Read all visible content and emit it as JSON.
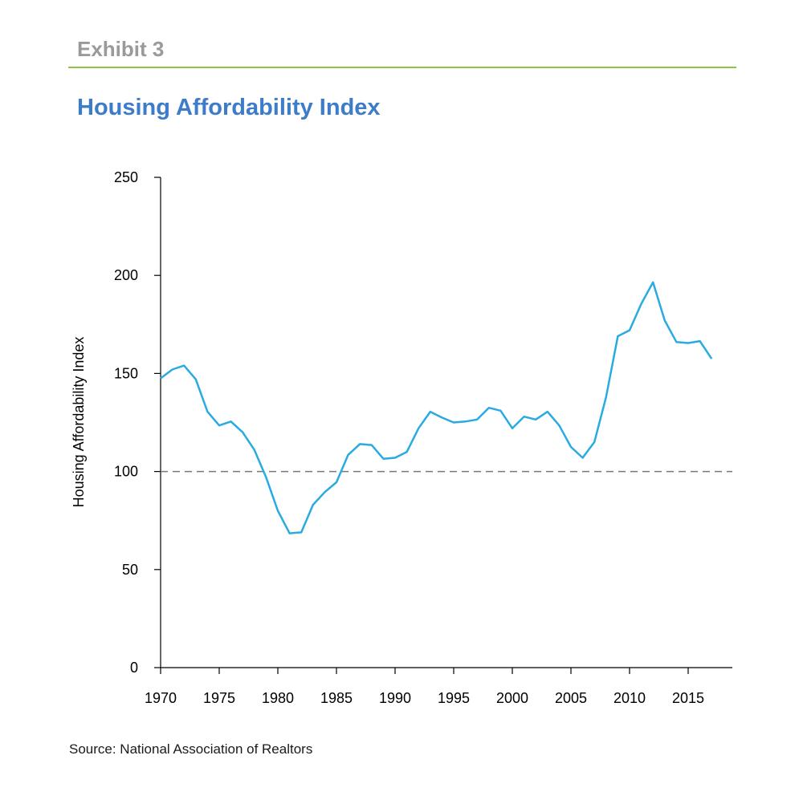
{
  "header": {
    "exhibit": "Exhibit 3",
    "title": "Housing Affordability Index"
  },
  "footer": {
    "source": "Source: National Association of Realtors"
  },
  "colors": {
    "exhibit_text": "#9a9a9a",
    "rule": "#8cc63f",
    "title": "#3d7cc9",
    "series": "#29abe2",
    "reference_line": "#777777"
  },
  "chart_data": {
    "type": "line",
    "title": "Housing Affordability Index",
    "xlabel": "",
    "ylabel": "Housing Affordability Index",
    "xlim": [
      1970,
      2019
    ],
    "ylim": [
      0,
      250
    ],
    "x_ticks": [
      1970,
      1975,
      1980,
      1985,
      1990,
      1995,
      2000,
      2005,
      2010,
      2015
    ],
    "y_ticks": [
      0,
      50,
      100,
      150,
      200,
      250
    ],
    "grid": false,
    "reference_line": {
      "y": 100,
      "style": "dashed"
    },
    "series": [
      {
        "x": [
          1970,
          1971,
          1972,
          1973,
          1974,
          1975,
          1976,
          1977,
          1978,
          1979,
          1980,
          1981,
          1982,
          1983,
          1984,
          1985,
          1986,
          1987,
          1988,
          1989,
          1990,
          1991,
          1992,
          1993,
          1994,
          1995,
          1996,
          1997,
          1998,
          1999,
          2000,
          2001,
          2002,
          2003,
          2004,
          2005,
          2006,
          2007,
          2008,
          2009,
          2010,
          2011,
          2012,
          2013,
          2014,
          2015,
          2016,
          2017
        ],
        "values": [
          147.5,
          152,
          154,
          147,
          130.5,
          123.5,
          125.5,
          120,
          111,
          97,
          80,
          68.5,
          69,
          83,
          89.5,
          94.5,
          108.5,
          114,
          113.5,
          106.5,
          107,
          110,
          122,
          130.5,
          127.5,
          125,
          125.5,
          126.5,
          132.5,
          131,
          122,
          128,
          126.5,
          130.5,
          123.5,
          112.5,
          107,
          115,
          138,
          169,
          172,
          185.5,
          196.5,
          177,
          166,
          165.5,
          166.5,
          157.5
        ]
      }
    ]
  }
}
